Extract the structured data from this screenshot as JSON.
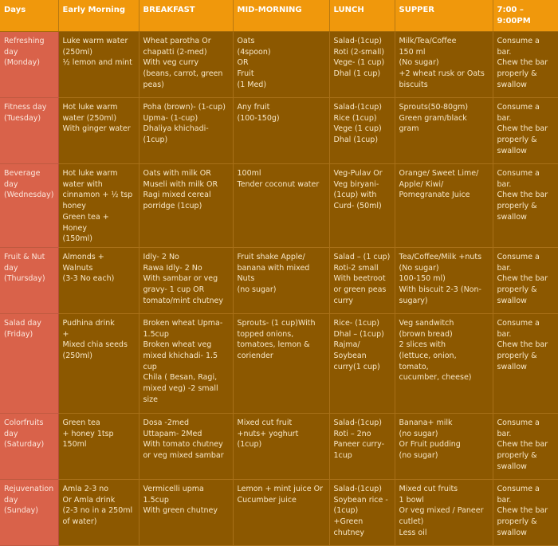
{
  "headers": [
    "Days",
    "Early Morning",
    "BREAKFAST",
    "MID-MORNING",
    "LUNCH",
    "SUPPER",
    "7:00 –\n9:00PM"
  ],
  "rows": [
    [
      "Refreshing\nday\n(Monday)",
      "Luke warm water\n(250ml)\n½ lemon and mint",
      "Wheat parotha Or\nchapatti (2-med)\nWith veg curry\n(beans, carrot, green\npeas)",
      "Oats\n(4spoon)\nOR\nFruit\n(1 Med)",
      "Salad-(1cup)\nRoti (2-small)\nVege- (1 cup)\nDhal (1 cup)",
      "Milk/Tea/Coffee\n150 ml\n(No sugar)\n+2 wheat rusk or Oats\nbiscuits",
      "Consume a\nbar.\nChew the bar\nproperly &\nswallow"
    ],
    [
      "Fitness day\n(Tuesday)",
      "Hot luke warm\nwater (250ml)\nWith ginger water",
      "Poha (brown)- (1-cup)\nUpma- (1-cup)\nDhaliya khichadi-\n(1cup)",
      "Any fruit\n(100-150g)",
      "Salad-(1cup)\nRice (1cup)\nVege (1 cup)\nDhal (1cup)",
      "Sprouts(50-80gm)\nGreen gram/black gram",
      "Consume a\nbar.\nChew the bar\nproperly &\nswallow"
    ],
    [
      "Beverage day\n(Wednesday)",
      "Hot luke warm\nwater with\ncinnamon + ½ tsp\nhoney\nGreen tea + Honey\n(150ml)",
      "Oats with milk OR\nMuseli with milk OR\nRagi mixed cereal\nporridge (1cup)",
      "100ml\nTender coconut water",
      "Veg-Pulav Or\nVeg biryani-\n(1cup) with\nCurd- (50ml)",
      "Orange/ Sweet Lime/\nApple/ Kiwi/\nPomegranate Juice",
      "Consume a\nbar.\nChew the bar\nproperly &\nswallow"
    ],
    [
      "Fruit & Nut\nday\n(Thursday)",
      "Almonds +\nWalnuts\n(3-3 No each)",
      "Idly- 2 No\nRawa Idly- 2 No\nWith sambar or veg\ngravy- 1 cup OR\ntomato/mint chutney",
      "Fruit shake Apple/\nbanana with mixed\nNuts\n(no sugar)",
      "Salad – (1 cup)\nRoti-2 small\nWith beetroot\nor green peas\ncurry",
      "Tea/Coffee/Milk +nuts\n(No sugar)\n100-150 ml)\nWith biscuit 2-3 (Non-\nsugary)",
      "Consume a\nbar.\nChew the bar\nproperly &\nswallow"
    ],
    [
      "Salad day\n(Friday)",
      "Pudhina drink\n+\nMixed chia seeds\n(250ml)",
      "Broken wheat Upma-\n1.5cup\nBroken wheat veg\nmixed khichadi- 1.5\ncup\nChila ( Besan, Ragi,\nmixed veg) -2 small\nsize",
      "Sprouts- (1 cup)With\ntopped onions,\ntomatoes, lemon &\ncoriender",
      "Rice- (1cup)\nDhal – (1cup)\nRajma/\nSoybean\ncurry(1 cup)",
      "Veg sandwitch\n(brown bread)\n2 slices with\n(lettuce, onion, tomato,\ncucumber, cheese)",
      "Consume a\nbar.\nChew the bar\nproperly &\nswallow"
    ],
    [
      "Colorfruits\nday\n(Saturday)",
      "Green tea\n+ honey 1tsp\n150ml",
      "Dosa -2med\nUttapam- 2Med\nWith tomato chutney\nor veg mixed sambar",
      "Mixed cut fruit\n+nuts+ yoghurt\n(1cup)",
      "Salad-(1cup)\nRoti – 2no\nPaneer curry-\n1cup",
      "Banana+ milk\n(no sugar)\nOr Fruit pudding\n(no sugar)",
      "Consume a\nbar.\nChew the bar\nproperly &\nswallow"
    ],
    [
      "Rejuvenation\nday\n(Sunday)",
      "Amla 2-3 no\nOr Amla drink\n(2-3 no in a 250ml\nof water)",
      "Vermicelli upma\n1.5cup\nWith green chutney",
      "Lemon + mint juice Or\nCucumber juice",
      "Salad-(1cup)\nSoybean rice -\n(1cup)\n+Green\nchutney",
      "Mixed cut fruits\n1 bowl\nOr veg mixed / Paneer\ncutlet)\nLess oil",
      "Consume a\nbar.\nChew the bar\nproperly &\nswallow"
    ]
  ]
}
